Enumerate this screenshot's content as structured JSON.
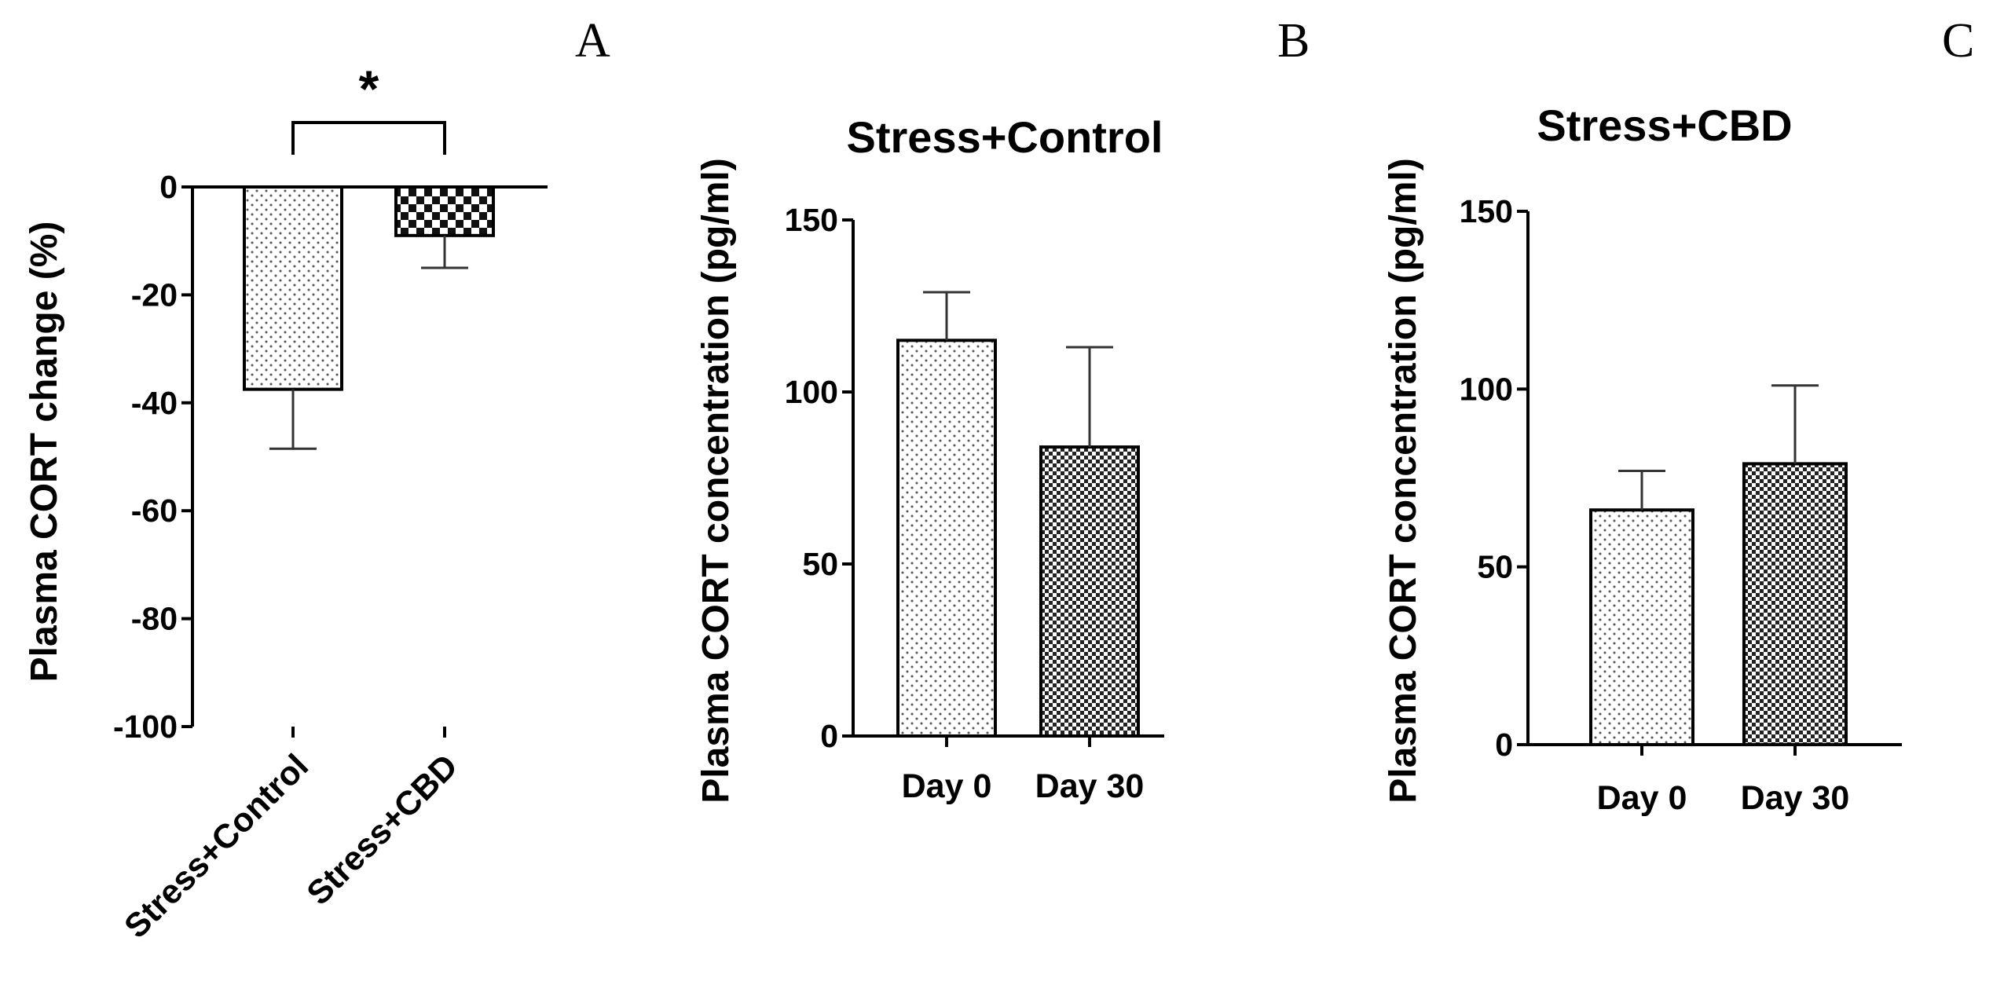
{
  "chart_data": [
    {
      "panel": "A",
      "type": "bar",
      "title": "",
      "xlabel": "",
      "ylabel": "Plasma CORT change (%)",
      "categories": [
        "Stress+Control",
        "Stress+CBD"
      ],
      "values": [
        -37.5,
        -9
      ],
      "errors": [
        11,
        6
      ],
      "patterns": [
        "dots",
        "checker"
      ],
      "ylim": [
        -100,
        0
      ],
      "yticks": [
        0,
        -20,
        -40,
        -60,
        -80,
        -100
      ],
      "significance": {
        "label": "*",
        "between": [
          "Stress+Control",
          "Stress+CBD"
        ]
      }
    },
    {
      "panel": "B",
      "type": "bar",
      "title": "Stress+Control",
      "xlabel": "",
      "ylabel": "Plasma CORT concentration (pg/ml)",
      "categories": [
        "Day 0",
        "Day 30"
      ],
      "values": [
        115,
        84
      ],
      "errors": [
        14,
        29
      ],
      "patterns": [
        "dots",
        "fine-checker"
      ],
      "ylim": [
        0,
        150
      ],
      "yticks": [
        0,
        50,
        100,
        150
      ]
    },
    {
      "panel": "C",
      "type": "bar",
      "title": "Stress+CBD",
      "xlabel": "",
      "ylabel": "Plasma CORT concentration (pg/ml)",
      "categories": [
        "Day 0",
        "Day 30"
      ],
      "values": [
        66,
        79
      ],
      "errors": [
        11,
        22
      ],
      "patterns": [
        "dots",
        "fine-checker"
      ],
      "ylim": [
        0,
        150
      ],
      "yticks": [
        0,
        50,
        100,
        150
      ]
    }
  ]
}
